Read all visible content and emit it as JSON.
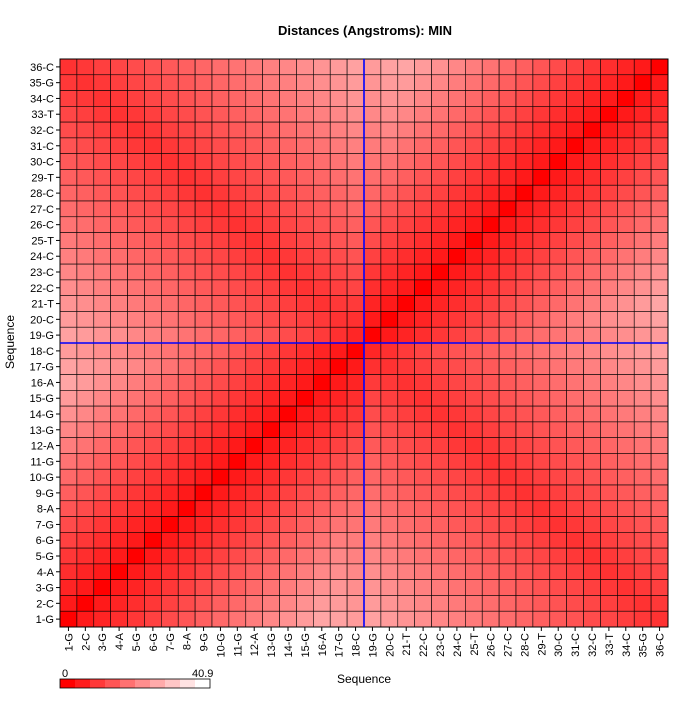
{
  "chart_data": {
    "type": "heatmap",
    "title": "Distances (Angstroms):  MIN",
    "xlabel": "Sequence",
    "ylabel": "Sequence",
    "categories": [
      "1-G",
      "2-C",
      "3-G",
      "4-A",
      "5-G",
      "6-G",
      "7-G",
      "8-A",
      "9-G",
      "10-G",
      "11-G",
      "12-A",
      "13-G",
      "14-G",
      "15-G",
      "16-A",
      "17-G",
      "18-C",
      "19-G",
      "20-C",
      "21-T",
      "22-C",
      "23-C",
      "24-C",
      "25-T",
      "26-C",
      "27-C",
      "28-C",
      "29-T",
      "30-C",
      "31-C",
      "32-C",
      "33-T",
      "34-C",
      "35-G",
      "36-C"
    ],
    "diagonal_value": 0,
    "value_model": "approximate: distance grows with |i-j| along each helical strand, minimum near the anti-diagonal hairpin pairing (i+j=37); a linker discontinuity between residues 18 and 19",
    "colorbar": {
      "min_label": "0",
      "max_label": "40.9",
      "min": 0,
      "max": 40.9,
      "low_color": "#ff0000",
      "high_color": "#ffffff"
    },
    "crosshair": {
      "x_between": [
        "18-C",
        "19-G"
      ],
      "y_between": [
        "18-C",
        "19-G"
      ],
      "color": "#0000ff"
    },
    "grid": true
  }
}
